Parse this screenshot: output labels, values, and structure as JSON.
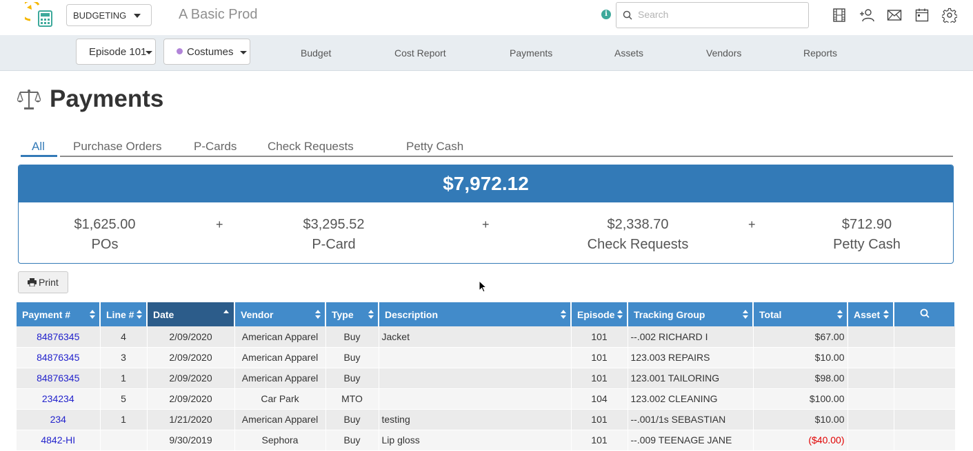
{
  "topbar": {
    "module": "BUDGETING",
    "production": "A Basic Prod",
    "search_placeholder": "Search",
    "icons": [
      "film-icon",
      "add-user-icon",
      "mail-icon",
      "calendar-icon",
      "settings-gear-icon"
    ]
  },
  "navbar": {
    "episode": "Episode 101",
    "department": "Costumes",
    "department_color": "#b184d8",
    "links": [
      "Budget",
      "Cost Report",
      "Payments",
      "Assets",
      "Vendors",
      "Reports"
    ]
  },
  "page": {
    "title": "Payments"
  },
  "tabs": [
    "All",
    "Purchase Orders",
    "P-Cards",
    "Check Requests",
    "Petty Cash"
  ],
  "summary": {
    "total": "$7,972.12",
    "plus": "+",
    "items": [
      {
        "amount": "$1,625.00",
        "label": "POs"
      },
      {
        "amount": "$3,295.52",
        "label": "P-Card"
      },
      {
        "amount": "$2,338.70",
        "label": "Check Requests"
      },
      {
        "amount": "$712.90",
        "label": "Petty Cash"
      }
    ]
  },
  "print_label": "Print",
  "table": {
    "columns": [
      "Payment #",
      "Line #",
      "Date",
      "Vendor",
      "Type",
      "Description",
      "Episode",
      "Tracking Group",
      "Total",
      "Asset"
    ],
    "rows": [
      {
        "payment": "84876345",
        "line": "4",
        "date": "2/09/2020",
        "vendor": "American Apparel",
        "type": "Buy",
        "description": "Jacket",
        "episode": "101",
        "tracking": "--.002 RICHARD I",
        "total": "$67.00",
        "asset": ""
      },
      {
        "payment": "84876345",
        "line": "3",
        "date": "2/09/2020",
        "vendor": "American Apparel",
        "type": "Buy",
        "description": "",
        "episode": "101",
        "tracking": "123.003 REPAIRS",
        "total": "$10.00",
        "asset": ""
      },
      {
        "payment": "84876345",
        "line": "1",
        "date": "2/09/2020",
        "vendor": "American Apparel",
        "type": "Buy",
        "description": "",
        "episode": "101",
        "tracking": "123.001 TAILORING",
        "total": "$98.00",
        "asset": ""
      },
      {
        "payment": "234234",
        "line": "5",
        "date": "2/09/2020",
        "vendor": "Car Park",
        "type": "MTO",
        "description": "",
        "episode": "104",
        "tracking": "123.002 CLEANING",
        "total": "$100.00",
        "asset": ""
      },
      {
        "payment": "234",
        "line": "1",
        "date": "1/21/2020",
        "vendor": "American Apparel",
        "type": "Buy",
        "description": "testing",
        "episode": "101",
        "tracking": "--.001/1s SEBASTIAN",
        "total": "$10.00",
        "asset": ""
      },
      {
        "payment": "4842-HI",
        "line": "",
        "date": "9/30/2019",
        "vendor": "Sephora",
        "type": "Buy",
        "description": "Lip gloss",
        "episode": "101",
        "tracking": "--.009 TEENAGE JANE",
        "total": "($40.00)",
        "asset": ""
      }
    ]
  }
}
